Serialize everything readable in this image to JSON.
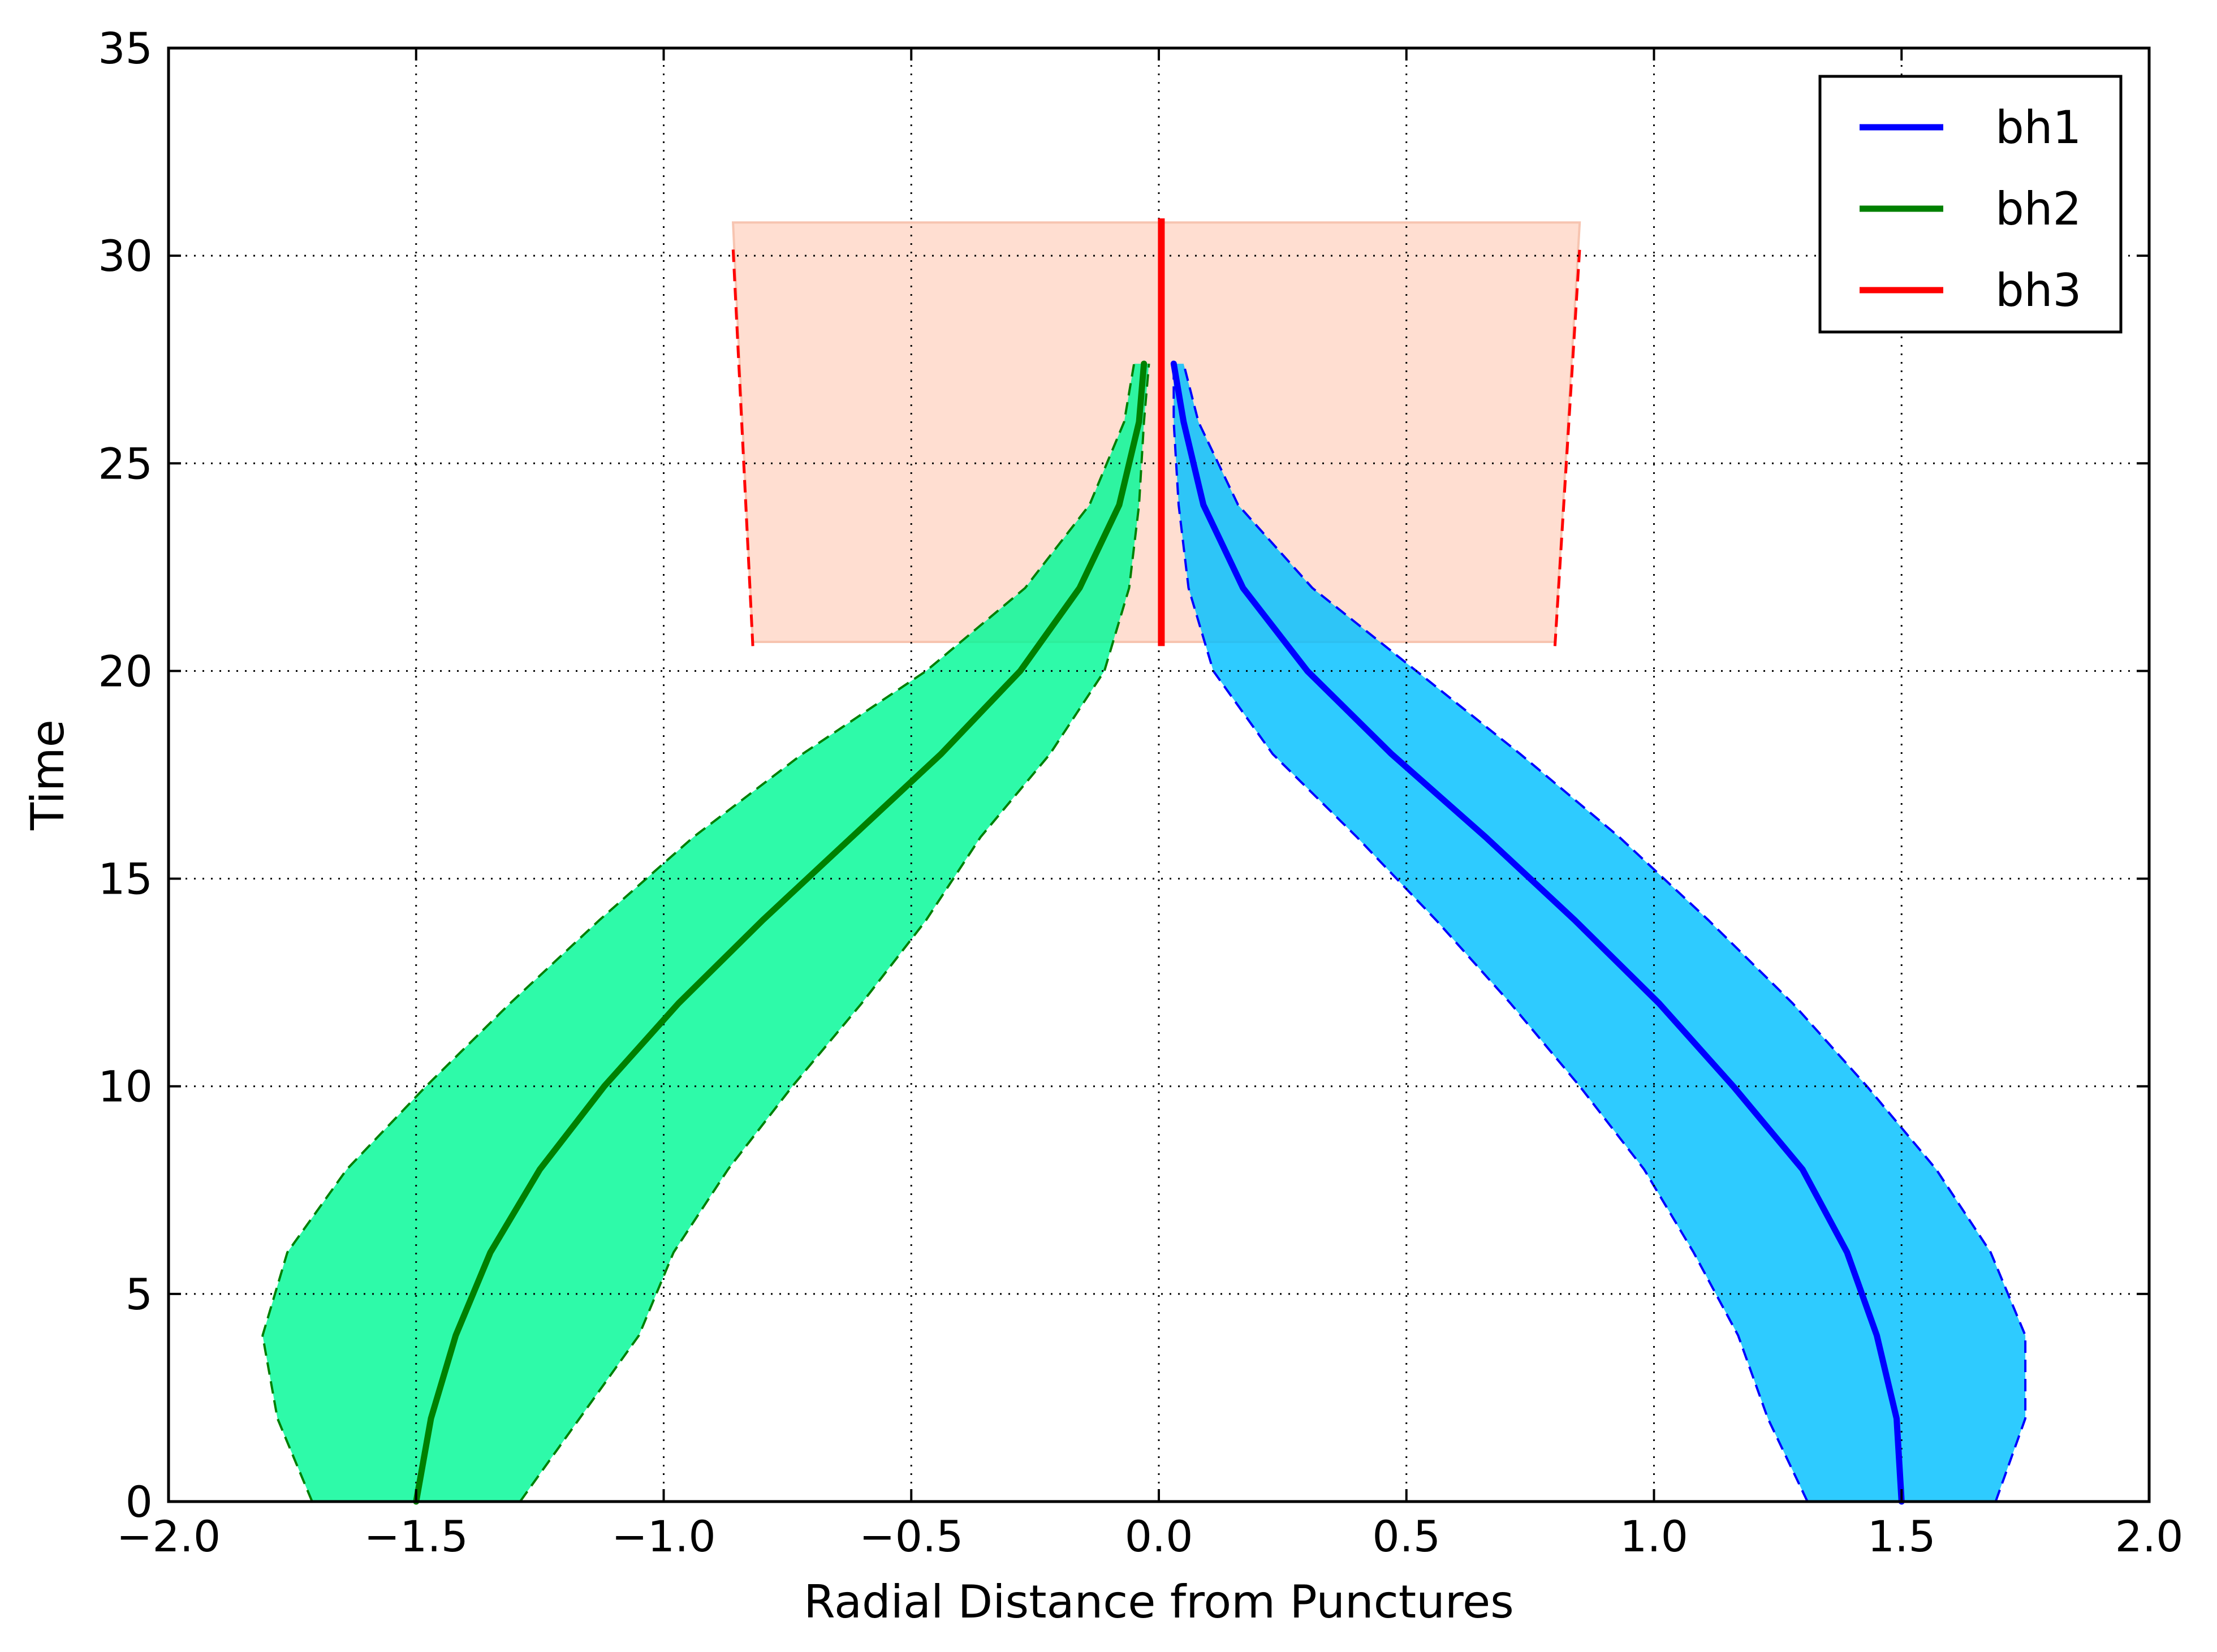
{
  "chart_data": {
    "type": "area",
    "xlabel": "Radial Distance from Punctures",
    "ylabel": "Time",
    "xlim": [
      -2.0,
      2.0
    ],
    "ylim": [
      0,
      35
    ],
    "x_ticks": [
      "−2.0",
      "−1.5",
      "−1.0",
      "−0.5",
      "0.0",
      "0.5",
      "1.0",
      "1.5",
      "2.0"
    ],
    "y_ticks": [
      "0",
      "5",
      "10",
      "15",
      "20",
      "25",
      "30",
      "35"
    ],
    "x_tick_values": [
      -2.0,
      -1.5,
      -1.0,
      -0.5,
      0.0,
      0.5,
      1.0,
      1.5,
      2.0
    ],
    "y_tick_values": [
      0,
      5,
      10,
      15,
      20,
      25,
      30,
      35
    ],
    "grid": true,
    "legend_position": "top-right",
    "series": [
      {
        "name": "bh1",
        "color": "#0000ff",
        "fill_color": "#00bfff",
        "center": [
          [
            1.5,
            0
          ],
          [
            1.49,
            2
          ],
          [
            1.45,
            4
          ],
          [
            1.39,
            6
          ],
          [
            1.3,
            8
          ],
          [
            1.16,
            10
          ],
          [
            1.01,
            12
          ],
          [
            0.84,
            14
          ],
          [
            0.66,
            16
          ],
          [
            0.47,
            18
          ],
          [
            0.3,
            20
          ],
          [
            0.17,
            22
          ],
          [
            0.09,
            24
          ],
          [
            0.05,
            26
          ],
          [
            0.03,
            27.4
          ]
        ],
        "outer": [
          [
            1.69,
            0
          ],
          [
            1.75,
            2
          ],
          [
            1.75,
            4
          ],
          [
            1.68,
            6
          ],
          [
            1.57,
            8
          ],
          [
            1.43,
            10
          ],
          [
            1.28,
            12
          ],
          [
            1.11,
            14
          ],
          [
            0.93,
            16
          ],
          [
            0.73,
            18
          ],
          [
            0.52,
            20
          ],
          [
            0.31,
            22
          ],
          [
            0.16,
            24
          ],
          [
            0.08,
            26
          ],
          [
            0.05,
            27.4
          ]
        ],
        "inner": [
          [
            1.31,
            0
          ],
          [
            1.23,
            2
          ],
          [
            1.17,
            4
          ],
          [
            1.08,
            6
          ],
          [
            0.98,
            8
          ],
          [
            0.85,
            10
          ],
          [
            0.71,
            12
          ],
          [
            0.56,
            14
          ],
          [
            0.4,
            16
          ],
          [
            0.23,
            18
          ],
          [
            0.11,
            20
          ],
          [
            0.06,
            22
          ],
          [
            0.04,
            24
          ],
          [
            0.03,
            26
          ],
          [
            0.03,
            27.4
          ]
        ]
      },
      {
        "name": "bh2",
        "color": "#008000",
        "fill_color": "#00f996",
        "center": [
          [
            -1.5,
            0
          ],
          [
            -1.47,
            2
          ],
          [
            -1.42,
            4
          ],
          [
            -1.35,
            6
          ],
          [
            -1.25,
            8
          ],
          [
            -1.12,
            10
          ],
          [
            -0.97,
            12
          ],
          [
            -0.8,
            14
          ],
          [
            -0.62,
            16
          ],
          [
            -0.44,
            18
          ],
          [
            -0.28,
            20
          ],
          [
            -0.16,
            22
          ],
          [
            -0.08,
            24
          ],
          [
            -0.04,
            26
          ],
          [
            -0.03,
            27.4
          ]
        ],
        "outer": [
          [
            -1.71,
            0
          ],
          [
            -1.78,
            2
          ],
          [
            -1.81,
            4
          ],
          [
            -1.76,
            6
          ],
          [
            -1.64,
            8
          ],
          [
            -1.48,
            10
          ],
          [
            -1.31,
            12
          ],
          [
            -1.13,
            14
          ],
          [
            -0.94,
            16
          ],
          [
            -0.72,
            18
          ],
          [
            -0.47,
            20
          ],
          [
            -0.27,
            22
          ],
          [
            -0.14,
            24
          ],
          [
            -0.07,
            26
          ],
          [
            -0.05,
            27.4
          ]
        ],
        "inner": [
          [
            -1.29,
            0
          ],
          [
            -1.17,
            2
          ],
          [
            -1.05,
            4
          ],
          [
            -0.98,
            6
          ],
          [
            -0.87,
            8
          ],
          [
            -0.74,
            10
          ],
          [
            -0.6,
            12
          ],
          [
            -0.47,
            14
          ],
          [
            -0.36,
            16
          ],
          [
            -0.22,
            18
          ],
          [
            -0.11,
            20
          ],
          [
            -0.06,
            22
          ],
          [
            -0.04,
            24
          ],
          [
            -0.03,
            26
          ],
          [
            -0.02,
            27.4
          ]
        ]
      },
      {
        "name": "bh3",
        "color": "#ff0000",
        "fill_color": "#ffdccf",
        "center": [
          [
            0.005,
            20.6
          ],
          [
            0.005,
            30.9
          ]
        ],
        "left_edge": [
          [
            -0.82,
            20.6
          ],
          [
            -0.86,
            30.2
          ]
        ],
        "right_edge": [
          [
            0.8,
            20.6
          ],
          [
            0.85,
            30.2
          ]
        ],
        "band_top": 30.8,
        "band_bottom": 20.7
      }
    ]
  }
}
